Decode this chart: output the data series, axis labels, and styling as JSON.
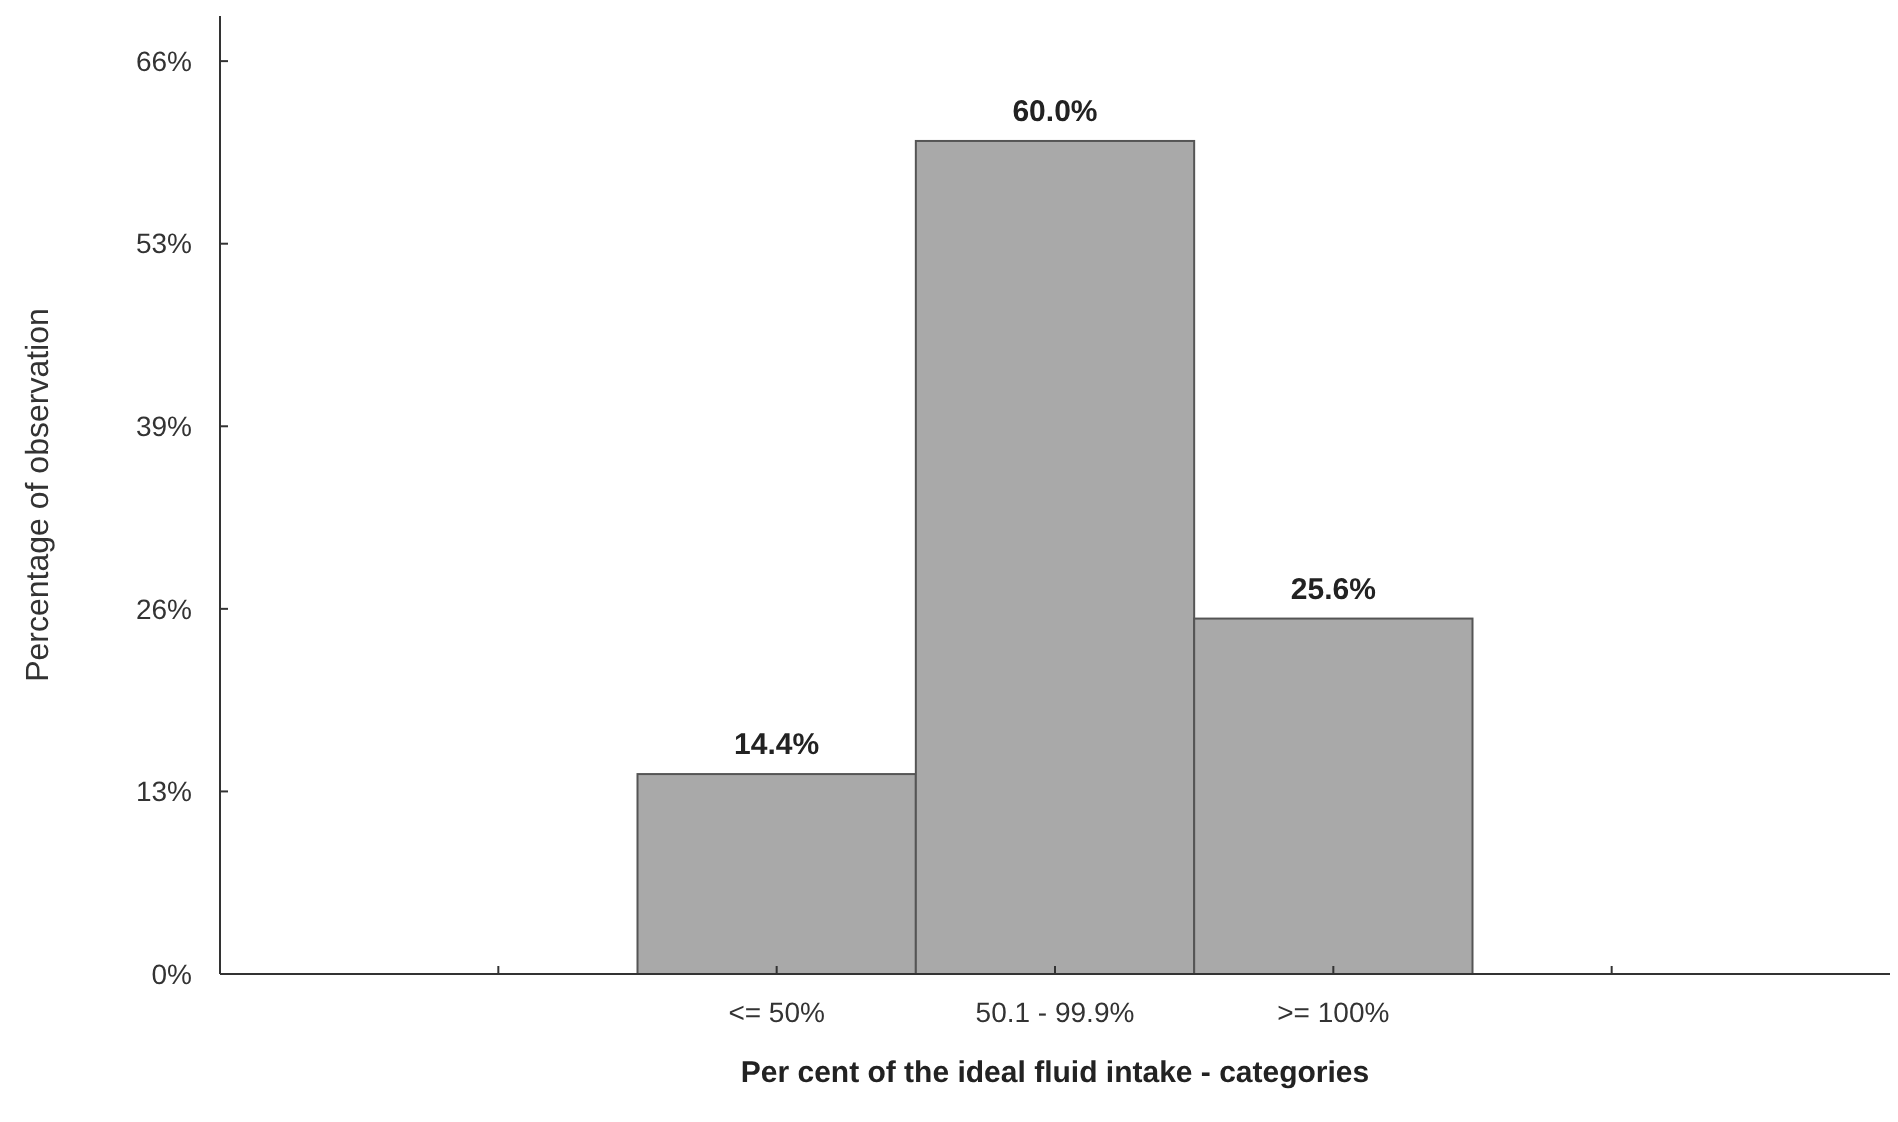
{
  "chart_data": {
    "type": "bar",
    "xlabel": "Per cent of the ideal fluid intake - categories",
    "ylabel": "Percentage of observation",
    "categories": [
      null,
      "<= 50%",
      "50.1 - 99.9%",
      ">= 100%",
      null
    ],
    "values": [
      null,
      14.4,
      60.0,
      25.6,
      null
    ],
    "value_labels": [
      null,
      "14.4%",
      "60.0%",
      "25.6%",
      null
    ],
    "color": "#a9a9a9",
    "ylim": [
      0,
      69
    ],
    "yticks": [
      {
        "value": 0,
        "label": "0%"
      },
      {
        "value": 13.15,
        "label": "13%"
      },
      {
        "value": 26.3,
        "label": "26%"
      },
      {
        "value": 39.45,
        "label": "39%"
      },
      {
        "value": 52.6,
        "label": "53%"
      },
      {
        "value": 65.75,
        "label": "66%"
      }
    ],
    "grid": false
  }
}
